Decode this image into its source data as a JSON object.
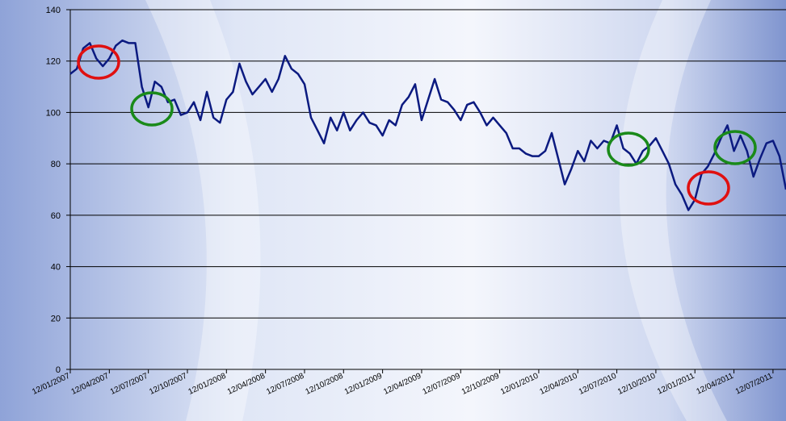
{
  "chart_data": {
    "type": "line",
    "categories": [
      "12/01/2007",
      null,
      null,
      null,
      null,
      null,
      "12/04/2007",
      null,
      null,
      null,
      null,
      null,
      "12/07/2007",
      null,
      null,
      null,
      null,
      null,
      "12/10/2007",
      null,
      null,
      null,
      null,
      null,
      "12/01/2008",
      null,
      null,
      null,
      null,
      null,
      "12/04/2008",
      null,
      null,
      null,
      null,
      null,
      "12/07/2008",
      null,
      null,
      null,
      null,
      null,
      "12/10/2008",
      null,
      null,
      null,
      null,
      null,
      "12/01/2009",
      null,
      null,
      null,
      null,
      null,
      "12/04/2009",
      null,
      null,
      null,
      null,
      null,
      "12/07/2009",
      null,
      null,
      null,
      null,
      null,
      "12/10/2009",
      null,
      null,
      null,
      null,
      null,
      "12/01/2010",
      null,
      null,
      null,
      null,
      null,
      "12/04/2010",
      null,
      null,
      null,
      null,
      null,
      "12/07/2010",
      null,
      null,
      null,
      null,
      null,
      "12/10/2010",
      null,
      null,
      null,
      null,
      null,
      "12/01/2011",
      null,
      null,
      null,
      null,
      null,
      "12/04/2011",
      null,
      null,
      null,
      null,
      null,
      "12/07/2011",
      null,
      null
    ],
    "series": [
      {
        "color": "#0b1a80",
        "values": [
          115,
          117,
          125,
          127,
          121,
          118,
          121,
          126,
          128,
          127,
          127,
          110,
          102,
          112,
          110,
          104,
          105,
          99,
          100,
          104,
          97,
          108,
          98,
          96,
          105,
          108,
          119,
          112,
          107,
          110,
          113,
          108,
          113,
          122,
          117,
          115,
          111,
          98,
          93,
          88,
          98,
          93,
          100,
          93,
          97,
          100,
          96,
          95,
          91,
          97,
          95,
          103,
          106,
          111,
          97,
          105,
          113,
          105,
          104,
          101,
          97,
          103,
          104,
          100,
          95,
          98,
          95,
          92,
          86,
          86,
          84,
          83,
          83,
          85,
          92,
          82,
          72,
          78,
          85,
          81,
          89,
          86,
          89,
          88,
          95,
          86,
          84,
          80,
          85,
          87,
          90,
          85,
          80,
          72,
          68,
          62,
          66,
          76,
          79,
          84,
          90,
          95,
          85,
          91,
          85,
          75,
          82,
          88,
          89,
          83,
          70
        ]
      }
    ],
    "ylim": [
      0,
      140
    ],
    "yticks": [
      0,
      20,
      40,
      60,
      80,
      100,
      120,
      140
    ],
    "grid": true
  }
}
